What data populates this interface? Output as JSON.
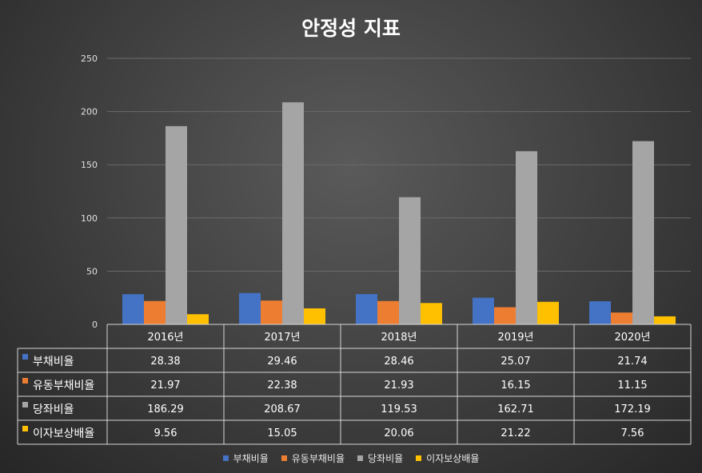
{
  "chart_data": {
    "type": "bar",
    "title": "안정성 지표",
    "categories": [
      "2016년",
      "2017년",
      "2018년",
      "2019년",
      "2020년"
    ],
    "series": [
      {
        "name": "부채비율",
        "color": "#4472c4",
        "values": [
          28.38,
          29.46,
          28.46,
          25.07,
          21.74
        ],
        "labels": [
          "28.38",
          "29.46",
          "28.46",
          "25.07",
          "21.74"
        ]
      },
      {
        "name": "유동부채비율",
        "color": "#ed7d31",
        "values": [
          21.97,
          22.38,
          21.93,
          16.15,
          11.15
        ],
        "labels": [
          "21.97",
          "22.38",
          "21.93",
          "16.15",
          "11.15"
        ]
      },
      {
        "name": "당좌비율",
        "color": "#a5a5a5",
        "values": [
          186.29,
          208.67,
          119.53,
          162.71,
          172.19
        ],
        "labels": [
          "186.29",
          "208.67",
          "119.53",
          "162.71",
          "172.19"
        ]
      },
      {
        "name": "이자보상배율",
        "color": "#ffc000",
        "values": [
          9.56,
          15.05,
          20.06,
          21.22,
          7.56
        ],
        "labels": [
          "9.56",
          "15.05",
          "20.06",
          "21.22",
          "7.56"
        ]
      }
    ],
    "ylim": [
      0,
      250
    ],
    "yticks": [
      "0",
      "50",
      "100",
      "150",
      "200",
      "250"
    ],
    "grid": true,
    "data_table": true,
    "legend_position": "bottom"
  }
}
